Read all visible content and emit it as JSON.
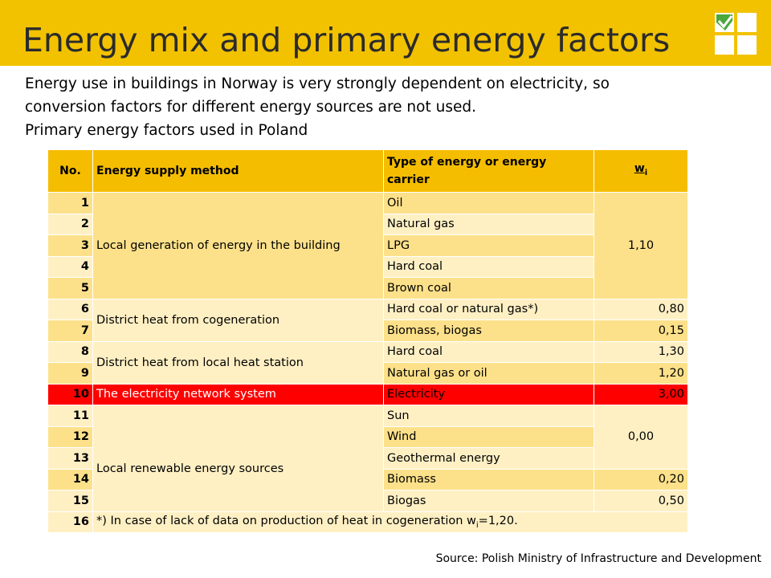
{
  "slide": {
    "title": "Energy mix and primary energy factors",
    "intro_line1": "Energy use in buildings in Norway is very strongly dependent on electricity, so",
    "intro_line2": "conversion factors for different energy sources are not used.",
    "intro_line3": "Primary energy factors used in Poland",
    "source": "Source: Polish Ministry of Infrastructure and Development"
  },
  "table": {
    "headers": {
      "no": "No.",
      "method": "Energy supply method",
      "carrier": "Type of energy or energy carrier",
      "w": "wi"
    },
    "groups": {
      "local": "Local generation of energy in the building",
      "cogeneration": "District heat from cogeneration",
      "heat_station": "District heat from local heat station",
      "network": "The electricity network system",
      "renewable": "Local renewable energy sources"
    },
    "rows": [
      {
        "no": "1",
        "carrier": "Oil",
        "w": "1,10"
      },
      {
        "no": "2",
        "carrier": "Natural gas"
      },
      {
        "no": "3",
        "carrier": "LPG"
      },
      {
        "no": "4",
        "carrier": "Hard coal"
      },
      {
        "no": "5",
        "carrier": "Brown coal"
      },
      {
        "no": "6",
        "carrier": "Hard coal or natural gas*)",
        "w": "0,80"
      },
      {
        "no": "7",
        "carrier": "Biomass, biogas",
        "w": "0,15"
      },
      {
        "no": "8",
        "carrier": "Hard coal",
        "w": "1,30"
      },
      {
        "no": "9",
        "carrier": "Natural gas or oil",
        "w": "1,20"
      },
      {
        "no": "10",
        "carrier": "Electricity",
        "w": "3,00"
      },
      {
        "no": "11",
        "carrier": "Sun",
        "w": "0,00"
      },
      {
        "no": "12",
        "carrier": "Wind"
      },
      {
        "no": "13",
        "carrier": "Geothermal energy"
      },
      {
        "no": "14",
        "carrier": "Biomass",
        "w": "0,20"
      },
      {
        "no": "15",
        "carrier": "Biogas",
        "w": "0,50"
      },
      {
        "no": "16",
        "footnote": "*) In case of lack of data on production of heat in cogeneration wi=1,20."
      }
    ]
  },
  "colors": {
    "title_bar": "#f2c200",
    "header": "#f5bd00",
    "row_dark": "#fde18a",
    "row_light": "#fff0c4",
    "highlight": "#ff0000"
  }
}
